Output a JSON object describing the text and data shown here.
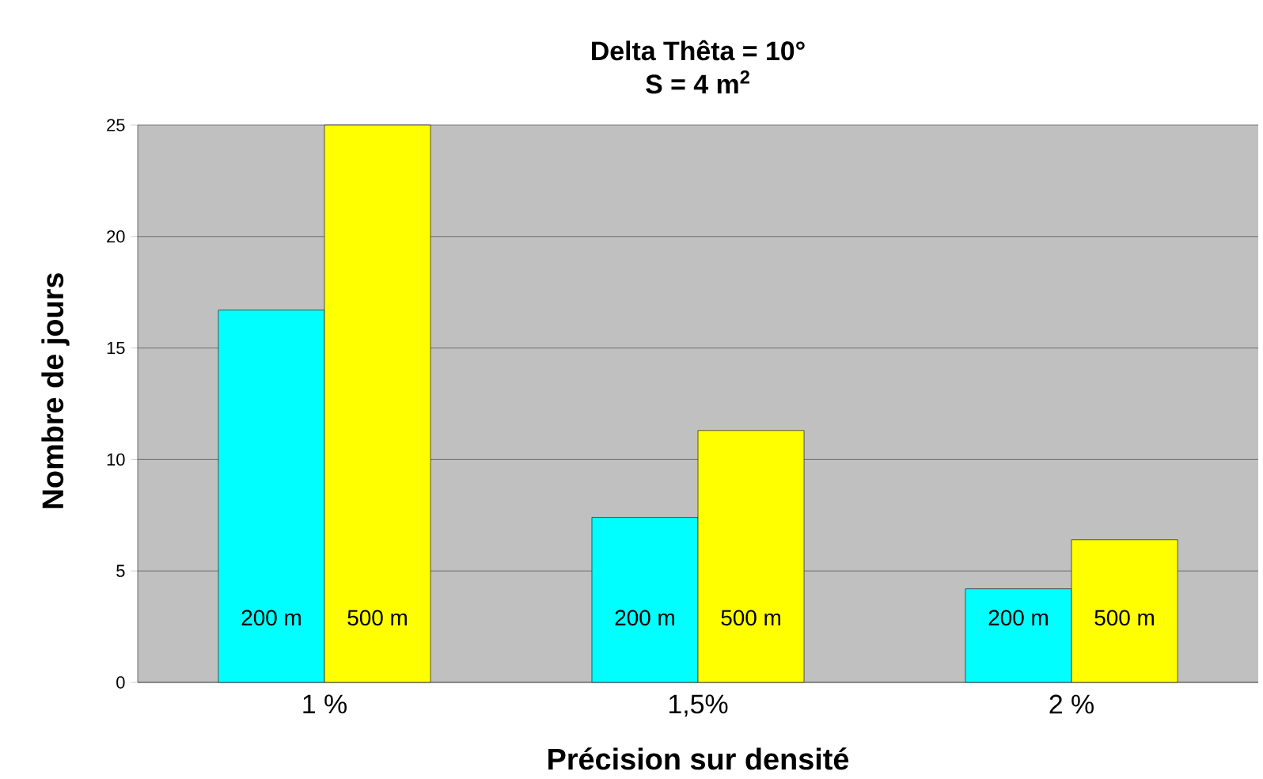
{
  "chart_data": {
    "type": "bar",
    "title": "Delta Thêta = 10°",
    "subtitle": "S = 4 m$^{2}$",
    "xlabel": "Précision sur densité",
    "ylabel": "Nombre de jours",
    "categories": [
      "1 %",
      "1,5%",
      "2 %"
    ],
    "series": [
      {
        "name": "200 m",
        "color": "#00ffff",
        "values": [
          16.7,
          7.4,
          4.2
        ]
      },
      {
        "name": "500 m",
        "color": "#ffff00",
        "values": [
          25,
          11.3,
          6.4
        ]
      }
    ],
    "ylim": [
      0,
      25
    ],
    "yticks": [
      0,
      5,
      10,
      15,
      20,
      25
    ],
    "grid": "y"
  }
}
